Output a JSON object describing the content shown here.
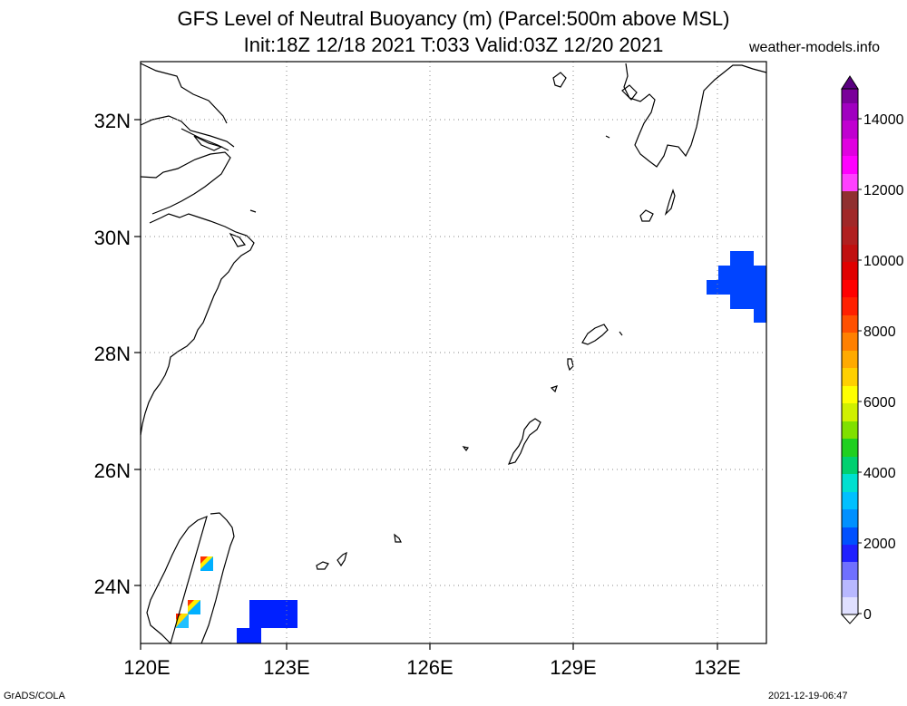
{
  "header": {
    "title_line1": "GFS Level of Neutral Buoyancy (m) (Parcel:500m above MSL)",
    "title_line2": "Init:18Z 12/18 2021 T:033 Valid:03Z 12/20 2021",
    "site": "weather-models.info"
  },
  "map": {
    "lat_labels": [
      "32N",
      "30N",
      "28N",
      "26N",
      "24N"
    ],
    "lon_labels": [
      "120E",
      "123E",
      "126E",
      "129E",
      "132E"
    ]
  },
  "colorbar": {
    "labels": [
      "14000",
      "12000",
      "10000",
      "8000",
      "6000",
      "4000",
      "2000",
      "0"
    ]
  },
  "footer": {
    "left": "GrADS/COLA",
    "right": "2021-12-19-06:47"
  }
}
